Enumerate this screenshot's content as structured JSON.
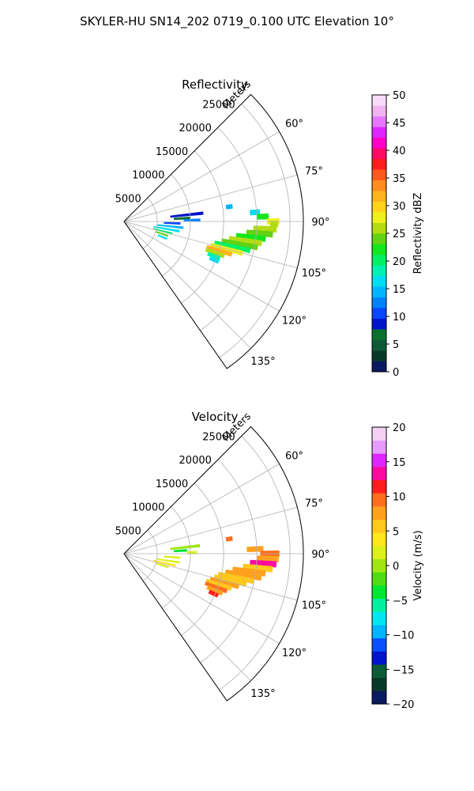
{
  "figure": {
    "title": "SKYLER-HU  SN14_202  0719_0.100 UTC Elevation 10°"
  },
  "chart_data": [
    {
      "type": "heatmap",
      "title": "Reflectivity",
      "radial_label": "Meters",
      "radial_ticks": [
        "5000",
        "10000",
        "15000",
        "20000",
        "25000"
      ],
      "range_max_m": 27000,
      "azimuth_range_deg": [
        45,
        145
      ],
      "azimuth_ticks": [
        "60°",
        "75°",
        "90°",
        "105°",
        "120°",
        "135°"
      ],
      "grid": true,
      "colorbar": {
        "label": "Reflectivity dBZ",
        "min": 0,
        "max": 50,
        "step": 2.5,
        "ticks": [
          "0",
          "5",
          "10",
          "15",
          "20",
          "25",
          "30",
          "35",
          "40",
          "45",
          "50"
        ],
        "colors": [
          "#0a1a5e",
          "#083a2a",
          "#0d5a36",
          "#0a7030",
          "#0014c8",
          "#0a46ff",
          "#0082ff",
          "#00b4ff",
          "#00dcf0",
          "#00f0b4",
          "#00f064",
          "#14e61e",
          "#64d214",
          "#b4dc14",
          "#f0f01e",
          "#ffd21e",
          "#ffb41e",
          "#ff8c1e",
          "#ff5a1e",
          "#ff1e1e",
          "#ff0a64",
          "#ff00c8",
          "#dc28ff",
          "#e678ff",
          "#f0b4f0",
          "#fadcfa"
        ]
      },
      "cells": [
        {
          "az": 84,
          "r0": 7000,
          "r1": 12000,
          "v": 12
        },
        {
          "az": 87,
          "r0": 7500,
          "r1": 10000,
          "v": 8
        },
        {
          "az": 89,
          "r0": 9000,
          "r1": 11500,
          "v": 17
        },
        {
          "az": 92,
          "r0": 6000,
          "r1": 8500,
          "v": 14
        },
        {
          "az": 96,
          "r0": 5000,
          "r1": 9000,
          "v": 18
        },
        {
          "az": 100,
          "r0": 4500,
          "r1": 8500,
          "v": 21
        },
        {
          "az": 104,
          "r0": 4500,
          "r1": 7500,
          "v": 27
        },
        {
          "az": 108,
          "r0": 5000,
          "r1": 7000,
          "v": 30
        },
        {
          "az": 112,
          "r0": 5500,
          "r1": 7000,
          "v": 22
        },
        {
          "az": 82,
          "r0": 15500,
          "r1": 16500,
          "v": 18
        },
        {
          "az": 86,
          "r0": 19000,
          "r1": 20500,
          "v": 20
        },
        {
          "az": 88,
          "r0": 20000,
          "r1": 21800,
          "v": 29
        },
        {
          "az": 90,
          "r0": 21500,
          "r1": 23400,
          "v": 36
        },
        {
          "az": 91,
          "r0": 22000,
          "r1": 23200,
          "v": 34
        },
        {
          "az": 93,
          "r0": 19500,
          "r1": 23000,
          "v": 33
        },
        {
          "az": 95,
          "r0": 18500,
          "r1": 22500,
          "v": 30
        },
        {
          "az": 97,
          "r0": 17000,
          "r1": 21500,
          "v": 28
        },
        {
          "az": 99,
          "r0": 16000,
          "r1": 21000,
          "v": 33
        },
        {
          "az": 101,
          "r0": 15000,
          "r1": 20500,
          "v": 31
        },
        {
          "az": 103,
          "r0": 14000,
          "r1": 19500,
          "v": 27
        },
        {
          "az": 105,
          "r0": 13500,
          "r1": 18500,
          "v": 35
        },
        {
          "az": 107,
          "r0": 13000,
          "r1": 17000,
          "v": 40
        },
        {
          "az": 109,
          "r0": 13000,
          "r1": 16000,
          "v": 33
        },
        {
          "az": 111,
          "r0": 13500,
          "r1": 15500,
          "v": 24
        },
        {
          "az": 113,
          "r0": 14000,
          "r1": 15500,
          "v": 20
        }
      ]
    },
    {
      "type": "heatmap",
      "title": "Velocity",
      "radial_label": "Meters",
      "radial_ticks": [
        "5000",
        "10000",
        "15000",
        "20000",
        "25000"
      ],
      "range_max_m": 27000,
      "azimuth_range_deg": [
        45,
        145
      ],
      "azimuth_ticks": [
        "60°",
        "75°",
        "90°",
        "105°",
        "120°",
        "135°"
      ],
      "grid": true,
      "colorbar": {
        "label": "Velocity (m/s)",
        "min": -20,
        "max": 20,
        "step": 2,
        "ticks": [
          "−20",
          "−15",
          "−10",
          "−5",
          "0",
          "5",
          "10",
          "15",
          "20"
        ],
        "colors": [
          "#0a1a5e",
          "#083a2a",
          "#0d5a36",
          "#0014c8",
          "#0a50ff",
          "#00b4ff",
          "#00e6f0",
          "#00f0a0",
          "#00e632",
          "#50dc14",
          "#a0e614",
          "#dcf01e",
          "#ffe61e",
          "#ffc81e",
          "#ffa01e",
          "#ff6e1e",
          "#ff1e1e",
          "#ff0aa0",
          "#dc28ff",
          "#e69bff",
          "#f5d2f5"
        ]
      },
      "cells": [
        {
          "az": 84,
          "r0": 7000,
          "r1": 11500,
          "v": 1
        },
        {
          "az": 87,
          "r0": 7500,
          "r1": 9500,
          "v": -3
        },
        {
          "az": 89,
          "r0": 9500,
          "r1": 11000,
          "v": 2
        },
        {
          "az": 94,
          "r0": 6000,
          "r1": 8500,
          "v": 2
        },
        {
          "az": 99,
          "r0": 5000,
          "r1": 8500,
          "v": 3
        },
        {
          "az": 103,
          "r0": 4500,
          "r1": 8000,
          "v": 4
        },
        {
          "az": 107,
          "r0": 5000,
          "r1": 7000,
          "v": 3
        },
        {
          "az": 82,
          "r0": 15500,
          "r1": 16500,
          "v": 10
        },
        {
          "az": 88,
          "r0": 18500,
          "r1": 21000,
          "v": 9
        },
        {
          "az": 90,
          "r0": 20500,
          "r1": 23400,
          "v": 11
        },
        {
          "az": 92,
          "r0": 20000,
          "r1": 23300,
          "v": 8
        },
        {
          "az": 94,
          "r0": 19000,
          "r1": 23000,
          "v": 14
        },
        {
          "az": 96,
          "r0": 18000,
          "r1": 22500,
          "v": 6
        },
        {
          "az": 98,
          "r0": 16500,
          "r1": 21500,
          "v": 8
        },
        {
          "az": 100,
          "r0": 15500,
          "r1": 21000,
          "v": 9
        },
        {
          "az": 102,
          "r0": 14500,
          "r1": 20000,
          "v": 7
        },
        {
          "az": 104,
          "r0": 14000,
          "r1": 19000,
          "v": 6
        },
        {
          "az": 106,
          "r0": 13500,
          "r1": 18000,
          "v": 9
        },
        {
          "az": 108,
          "r0": 13000,
          "r1": 17000,
          "v": 7
        },
        {
          "az": 110,
          "r0": 13000,
          "r1": 16500,
          "v": 10
        },
        {
          "az": 112,
          "r0": 13500,
          "r1": 16000,
          "v": 9
        },
        {
          "az": 114,
          "r0": 14000,
          "r1": 15500,
          "v": 12
        }
      ]
    }
  ]
}
